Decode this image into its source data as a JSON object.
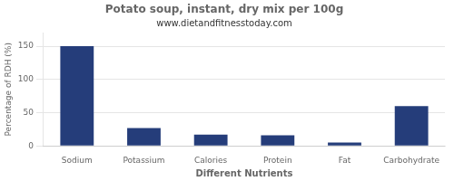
{
  "chart_data": {
    "type": "bar",
    "title": "Potato soup, instant, dry mix per 100g",
    "subtitle": "www.dietandfitnesstoday.com",
    "xlabel": "Different Nutrients",
    "ylabel": "Percentage of RDH (%)",
    "categories": [
      "Sodium",
      "Potassium",
      "Calories",
      "Protein",
      "Fat",
      "Carbohydrate"
    ],
    "values": [
      150,
      27,
      17,
      16,
      5,
      60
    ],
    "color": "#253d7a",
    "ylim": [
      0,
      170
    ],
    "yticks": [
      0,
      50,
      100,
      150
    ],
    "grid": true
  }
}
